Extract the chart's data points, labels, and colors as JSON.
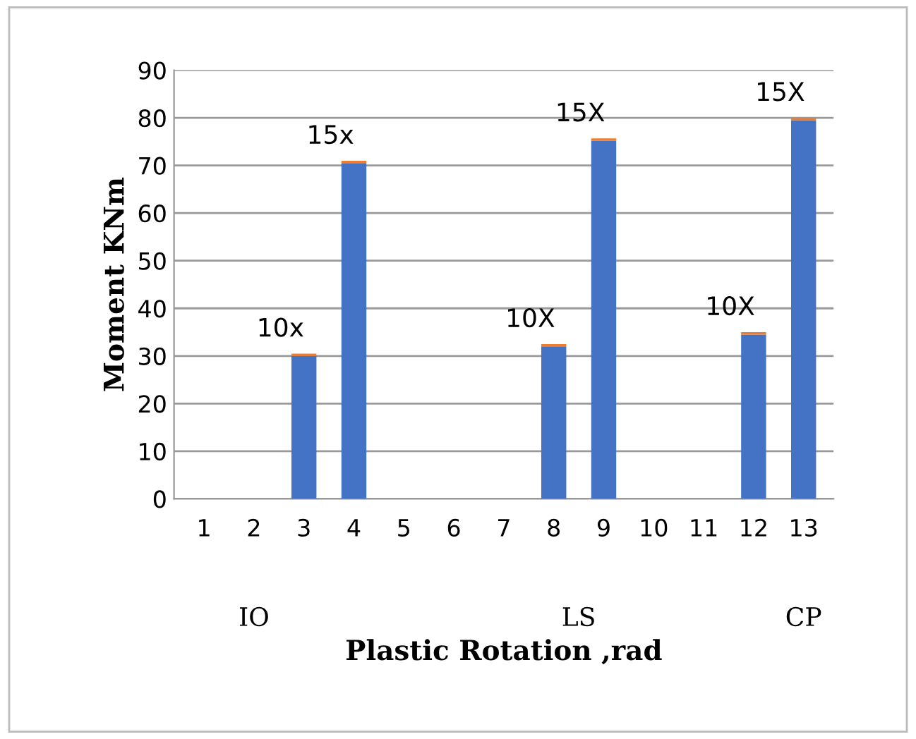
{
  "chart_data": {
    "type": "bar",
    "stacked": true,
    "xlabel": "Plastic Rotation ,rad",
    "ylabel": "Moment KNm",
    "categories": [
      "1",
      "2",
      "3",
      "4",
      "5",
      "6",
      "7",
      "8",
      "9",
      "10",
      "11",
      "12",
      "13"
    ],
    "series": [
      {
        "color": "#4472c4",
        "values": [
          null,
          null,
          30,
          70.5,
          null,
          null,
          null,
          32,
          75.2,
          null,
          null,
          34.5,
          79.5
        ]
      },
      {
        "color": "#ed7d31",
        "values": [
          null,
          null,
          0.5,
          0.5,
          null,
          null,
          null,
          0.5,
          0.5,
          null,
          null,
          0.5,
          0.5
        ]
      }
    ],
    "ylim": [
      0,
      90
    ],
    "yticks": [
      0,
      10,
      20,
      30,
      40,
      50,
      60,
      70,
      80,
      90
    ],
    "grid": "y",
    "annotations": [
      {
        "text": "10x",
        "x": "3",
        "y": 30.5
      },
      {
        "text": "15x",
        "x": "4",
        "y": 71
      },
      {
        "text": "10X",
        "x": "8",
        "y": 32.5
      },
      {
        "text": "15X",
        "x": "9",
        "y": 75.7
      },
      {
        "text": "10X",
        "x": "12",
        "y": 35
      },
      {
        "text": "15X",
        "x": "13",
        "y": 80
      },
      "IO",
      "LS",
      "CP"
    ]
  }
}
